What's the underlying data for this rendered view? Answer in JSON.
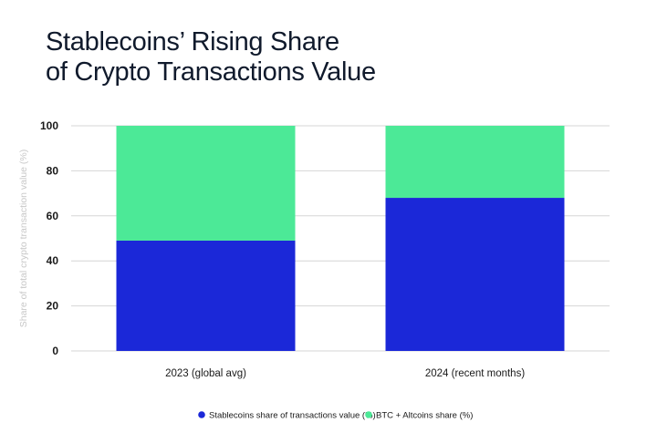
{
  "title_lines": [
    "Stablecoins’ Rising Share",
    "of Crypto Transactions Value"
  ],
  "colors": {
    "stablecoins": "#1b28d8",
    "btc_altcoins": "#4ce997",
    "grid": "#d6d6d6",
    "text": "#1a1a1a",
    "ylabel": "#c8c8c8"
  },
  "chart_data": {
    "type": "bar",
    "stacked": true,
    "title": "Stablecoins’ Rising Share of Crypto Transactions Value",
    "categories": [
      "2023 (global avg)",
      "2024 (recent months)"
    ],
    "series": [
      {
        "name": "Stablecoins share of transactions value (%)",
        "values": [
          49,
          68
        ],
        "color": "#1b28d8"
      },
      {
        "name": "BTC + Altcoins share (%)",
        "values": [
          51,
          32
        ],
        "color": "#4ce997"
      }
    ],
    "ylabel": "Share of total crypto transaction value (%)",
    "xlabel": "",
    "ylim": [
      0,
      100
    ],
    "yticks": [
      0,
      20,
      40,
      60,
      80,
      100
    ],
    "grid": true,
    "legend": "bottom-center"
  }
}
